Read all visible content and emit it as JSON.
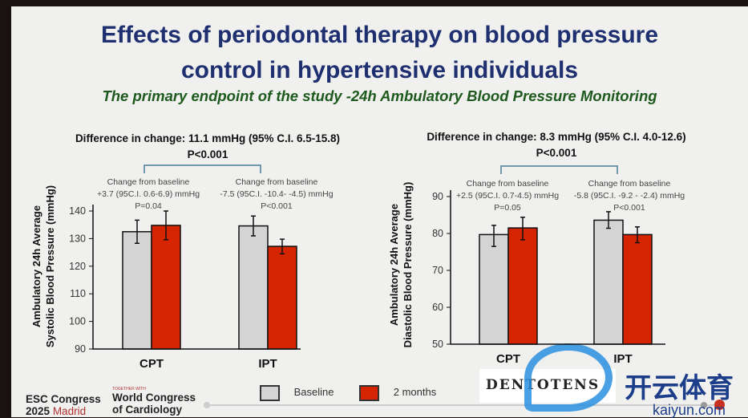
{
  "slide": {
    "title_line1": "Effects of periodontal therapy on blood pressure",
    "title_line2": "control in hypertensive individuals",
    "subtitle": "The primary endpoint of the study -24h Ambulatory Blood Pressure Monitoring"
  },
  "footer": {
    "esc": "ESC Congress",
    "year": "2025",
    "city": "Madrid",
    "together": "TOGETHER WITH",
    "wcc1": "World Congress",
    "wcc2": "of Cardiology",
    "sponsor": "DENTOTENS",
    "watermark_cn": "开云体育",
    "watermark_url": "kaiyun.com"
  },
  "colors": {
    "baseline": "#d4d4d4",
    "two_months": "#d42400",
    "title": "#1f3070",
    "subtitle": "#1e5a1e",
    "bracket": "#4a7a9a"
  },
  "chart_data": [
    {
      "type": "bar",
      "ylabel_line1": "Ambulatory 24h Average",
      "ylabel_line2": "Systolic Blood Pressure (mmHg)",
      "diff_line1": "Difference in change:  11.1 mmHg (95% C.I. 6.5-15.8)",
      "diff_line2": "P<0.001",
      "ylim": [
        90,
        140
      ],
      "yticks": [
        "90",
        "100",
        "110",
        "120",
        "130",
        "140"
      ],
      "categories": [
        "CPT",
        "IPT"
      ],
      "annotations": [
        {
          "l1": "Change from baseline",
          "l2": "+3.7 (95C.I. 0.6-6.9) mmHg",
          "l3": "P=0.04"
        },
        {
          "l1": "Change from baseline",
          "l2": "-7.5 (95C.I. -10.4- -4.5) mmHg",
          "l3": "P<0.001"
        }
      ],
      "series": [
        {
          "name": "Baseline",
          "values": [
            132.5,
            134.6
          ],
          "err_low": [
            128.3,
            131.0
          ],
          "err_high": [
            136.7,
            138.2
          ]
        },
        {
          "name": "2 months",
          "values": [
            134.8,
            127.2
          ],
          "err_low": [
            129.6,
            124.5
          ],
          "err_high": [
            140.0,
            129.8
          ]
        }
      ]
    },
    {
      "type": "bar",
      "ylabel_line1": "Ambulatory 24h Average",
      "ylabel_line2": "Diastolic Blood Pressure (mmHg)",
      "diff_line1": "Difference in change:  8.3 mmHg (95% C.I. 4.0-12.6)",
      "diff_line2": "P<0.001",
      "ylim": [
        50,
        90
      ],
      "yticks": [
        "50",
        "60",
        "70",
        "80",
        "90"
      ],
      "categories": [
        "CPT",
        "IPT"
      ],
      "annotations": [
        {
          "l1": "Change from baseline",
          "l2": "+2.5 (95C.I. 0.7-4.5) mmHg",
          "l3": "P=0.05"
        },
        {
          "l1": "Change from baseline",
          "l2": "-5.8 (95C.I. -9.2 - -2.4) mmHg",
          "l3": "P<0.001"
        }
      ],
      "series": [
        {
          "name": "Baseline",
          "values": [
            79.7,
            83.6
          ],
          "err_low": [
            76.5,
            81.4
          ],
          "err_high": [
            82.2,
            85.9
          ]
        },
        {
          "name": "2 months",
          "values": [
            81.5,
            79.7
          ],
          "err_low": [
            78.3,
            77.5
          ],
          "err_high": [
            84.4,
            81.8
          ]
        }
      ]
    }
  ],
  "legend": [
    "Baseline",
    "2 months"
  ]
}
